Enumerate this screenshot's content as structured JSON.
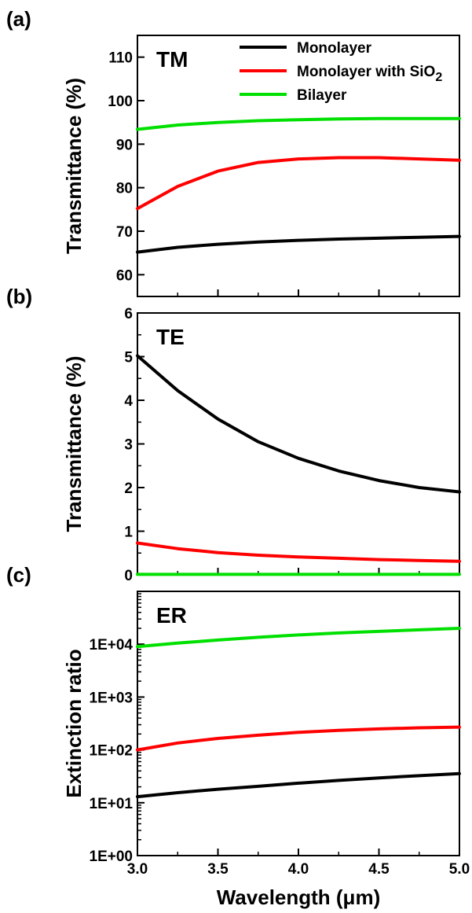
{
  "figure": {
    "xlabel": "Wavelength (μm)",
    "x_tick_labels": [
      "3.0",
      "3.5",
      "4.0",
      "4.5",
      "5.0"
    ]
  },
  "legend": {
    "entries": [
      {
        "series": "Monolayer",
        "text": "Monolayer",
        "color": "#000000"
      },
      {
        "series": "Monolayer with SiO2",
        "text": "Monolayer with SiO",
        "subscript": "2",
        "color": "#ff0000"
      },
      {
        "series": "Bilayer",
        "text": "Bilayer",
        "color": "#00e000"
      }
    ]
  },
  "chart_data": [
    {
      "type": "line",
      "panel": "(a)",
      "annotation": "TM",
      "title": "",
      "xlabel": "Wavelength (μm)",
      "ylabel": "Transmittance (%)",
      "xlim": [
        3.0,
        5.0
      ],
      "ylim": [
        55,
        115
      ],
      "yscale": "linear",
      "y_ticks": [
        60,
        70,
        80,
        90,
        100,
        110
      ],
      "y_tick_labels": [
        "60",
        "70",
        "80",
        "90",
        "100",
        "110"
      ],
      "x": [
        3.0,
        3.25,
        3.5,
        3.75,
        4.0,
        4.25,
        4.5,
        4.75,
        5.0
      ],
      "series": [
        {
          "name": "Monolayer",
          "color": "#000000",
          "values": [
            65.2,
            66.3,
            67.0,
            67.5,
            67.9,
            68.2,
            68.4,
            68.6,
            68.8
          ]
        },
        {
          "name": "Monolayer with SiO2",
          "color": "#ff0000",
          "values": [
            75.2,
            80.3,
            83.8,
            85.8,
            86.6,
            86.9,
            86.9,
            86.6,
            86.3
          ]
        },
        {
          "name": "Bilayer",
          "color": "#00e000",
          "values": [
            93.4,
            94.4,
            95.0,
            95.4,
            95.6,
            95.8,
            95.9,
            95.9,
            95.9
          ]
        }
      ]
    },
    {
      "type": "line",
      "panel": "(b)",
      "annotation": "TE",
      "title": "",
      "xlabel": "Wavelength (μm)",
      "ylabel": "Transmittance (%)",
      "xlim": [
        3.0,
        5.0
      ],
      "ylim": [
        0,
        6
      ],
      "yscale": "linear",
      "y_ticks": [
        0,
        1,
        2,
        3,
        4,
        5,
        6
      ],
      "y_tick_labels": [
        "0",
        "1",
        "2",
        "3",
        "4",
        "5",
        "6"
      ],
      "x": [
        3.0,
        3.25,
        3.5,
        3.75,
        4.0,
        4.25,
        4.5,
        4.75,
        5.0
      ],
      "series": [
        {
          "name": "Monolayer",
          "color": "#000000",
          "values": [
            5.02,
            4.22,
            3.57,
            3.05,
            2.67,
            2.38,
            2.16,
            2.0,
            1.9
          ]
        },
        {
          "name": "Monolayer with SiO2",
          "color": "#ff0000",
          "values": [
            0.73,
            0.6,
            0.51,
            0.45,
            0.41,
            0.38,
            0.35,
            0.33,
            0.31
          ]
        },
        {
          "name": "Bilayer",
          "color": "#00e000",
          "values": [
            0.01,
            0.01,
            0.01,
            0.01,
            0.01,
            0.01,
            0.01,
            0.01,
            0.01
          ]
        }
      ]
    },
    {
      "type": "line",
      "panel": "(c)",
      "annotation": "ER",
      "title": "",
      "xlabel": "Wavelength (μm)",
      "ylabel": "Extinction ratio",
      "xlim": [
        3.0,
        5.0
      ],
      "ylim": [
        1,
        100000
      ],
      "yscale": "log",
      "y_ticks": [
        1,
        10,
        100,
        1000,
        10000
      ],
      "y_tick_labels": [
        "1E+00",
        "1E+01",
        "1E+02",
        "1E+03",
        "1E+04"
      ],
      "x": [
        3.0,
        3.25,
        3.5,
        3.75,
        4.0,
        4.25,
        4.5,
        4.75,
        5.0
      ],
      "series": [
        {
          "name": "Monolayer",
          "color": "#000000",
          "values": [
            13,
            15.5,
            18,
            20.5,
            23.5,
            26.5,
            29.5,
            32.5,
            35.5
          ]
        },
        {
          "name": "Monolayer with SiO2",
          "color": "#ff0000",
          "values": [
            100,
            135,
            165,
            190,
            215,
            235,
            250,
            262,
            270
          ]
        },
        {
          "name": "Bilayer",
          "color": "#00e000",
          "values": [
            9000,
            10500,
            12000,
            13500,
            15000,
            16300,
            17500,
            18700,
            20000
          ]
        }
      ]
    }
  ]
}
